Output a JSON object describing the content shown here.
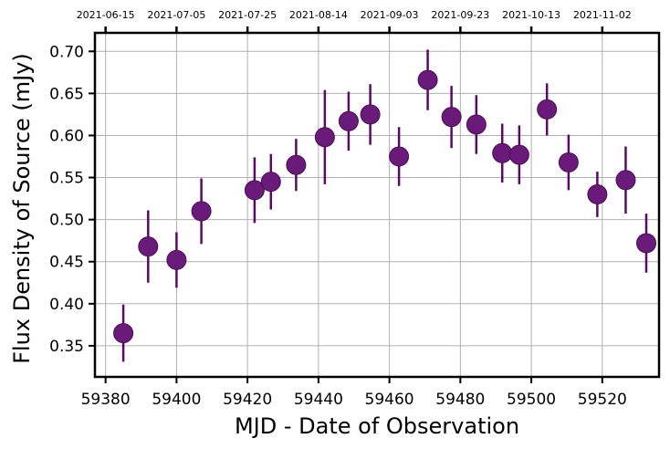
{
  "chart_data": {
    "type": "scatter",
    "xlabel": "MJD - Date of Observation",
    "ylabel": "Flux Density of Source (mJy)",
    "xlim": [
      59377,
      59536
    ],
    "ylim": [
      0.313,
      0.722
    ],
    "grid": true,
    "x_ticks": [
      59380,
      59400,
      59420,
      59440,
      59460,
      59480,
      59500,
      59520
    ],
    "y_ticks": [
      0.35,
      0.4,
      0.45,
      0.5,
      0.55,
      0.6,
      0.65,
      0.7
    ],
    "y_tick_labels": [
      "0.35",
      "0.40",
      "0.45",
      "0.50",
      "0.55",
      "0.60",
      "0.65",
      "0.70"
    ],
    "top_axis": {
      "ticks_mjd": [
        59380,
        59400,
        59420,
        59440,
        59460,
        59480,
        59500,
        59520
      ],
      "labels": [
        "2021-06-15",
        "2021-07-05",
        "2021-07-25",
        "2021-08-14",
        "2021-09-03",
        "2021-09-23",
        "2021-10-13",
        "2021-11-02"
      ]
    },
    "colors": {
      "marker": "#6a1a78",
      "marker_edge": "#4a0f55",
      "errorbar": "#5a0a66",
      "grid": "#b0b0b0"
    },
    "series": [
      {
        "points": [
          {
            "x": 59385.0,
            "y": 0.365,
            "err": 0.034
          },
          {
            "x": 59392.0,
            "y": 0.468,
            "err": 0.043
          },
          {
            "x": 59400.0,
            "y": 0.452,
            "err": 0.033
          },
          {
            "x": 59407.0,
            "y": 0.51,
            "err": 0.039
          },
          {
            "x": 59422.0,
            "y": 0.535,
            "err": 0.039
          },
          {
            "x": 59426.6,
            "y": 0.545,
            "err": 0.033
          },
          {
            "x": 59433.7,
            "y": 0.565,
            "err": 0.031
          },
          {
            "x": 59441.8,
            "y": 0.598,
            "err": 0.056
          },
          {
            "x": 59448.5,
            "y": 0.617,
            "err": 0.035
          },
          {
            "x": 59454.6,
            "y": 0.625,
            "err": 0.036
          },
          {
            "x": 59462.7,
            "y": 0.575,
            "err": 0.035
          },
          {
            "x": 59470.8,
            "y": 0.666,
            "err": 0.036
          },
          {
            "x": 59477.5,
            "y": 0.622,
            "err": 0.037
          },
          {
            "x": 59484.5,
            "y": 0.613,
            "err": 0.035
          },
          {
            "x": 59491.8,
            "y": 0.579,
            "err": 0.035
          },
          {
            "x": 59496.6,
            "y": 0.577,
            "err": 0.035
          },
          {
            "x": 59504.4,
            "y": 0.631,
            "err": 0.031
          },
          {
            "x": 59510.5,
            "y": 0.568,
            "err": 0.033
          },
          {
            "x": 59518.6,
            "y": 0.53,
            "err": 0.027
          },
          {
            "x": 59526.6,
            "y": 0.547,
            "err": 0.04
          },
          {
            "x": 59532.4,
            "y": 0.472,
            "err": 0.035
          }
        ]
      }
    ]
  }
}
